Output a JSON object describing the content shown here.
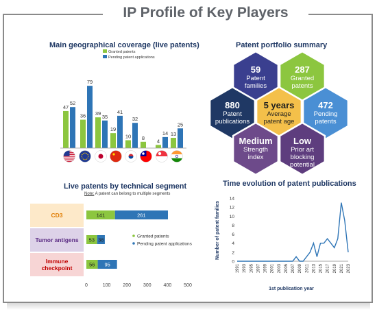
{
  "page": {
    "title": "IP Profile of Key Players"
  },
  "colors": {
    "granted": "#8cc63f",
    "pending": "#2e75b6",
    "frame": "#8a8a8a",
    "title_blue": "#1f3864"
  },
  "geo": {
    "title": "Main geographical coverage (live patents)",
    "legend": [
      "Granted patents",
      "Pending patent applications"
    ],
    "flags": [
      "us-flag-icon",
      "eu-flag-icon",
      "jp-flag-icon",
      "cn-flag-icon",
      "kr-flag-icon",
      "tw-flag-icon",
      "sg-flag-icon",
      "in-flag-icon"
    ]
  },
  "summary": {
    "title": "Patent portfolio summary",
    "hexes": [
      {
        "num": "59",
        "text": "Patent families",
        "color": "#3a3f8f"
      },
      {
        "num": "287",
        "text": "Granted patents",
        "color": "#8cc63f"
      },
      {
        "num": "880",
        "text": "Patent publications",
        "color": "#1f3864"
      },
      {
        "num": "5 years",
        "text": "Average patent age",
        "color": "#f4c04a"
      },
      {
        "num": "472",
        "text": "Pending patents",
        "color": "#4a8fd4"
      },
      {
        "num": "Medium",
        "text": "Strength index",
        "color": "#6d4a8a"
      },
      {
        "num": "Low",
        "text": "Prior art blocking potential",
        "color": "#5e3d7e"
      }
    ]
  },
  "segments": {
    "title": "Live patents by technical segment",
    "note_prefix": "Note:",
    "note": " A patent can belong to multiple segments",
    "labels": [
      {
        "text": "CD3",
        "bg": "#fde9c9",
        "fg": "#e07b00"
      },
      {
        "text": "Tumor antigens",
        "bg": "#ddd2e8",
        "fg": "#5b2c84"
      },
      {
        "text": "Immune checkpoint",
        "bg": "#f7d5d5",
        "fg": "#c00000"
      }
    ],
    "legend": [
      "Granted patents",
      "Pending patent applications"
    ]
  },
  "timeline": {
    "title": "Time evolution of patent publications"
  },
  "chart_data": [
    {
      "type": "bar",
      "title": "Main geographical coverage (live patents)",
      "categories": [
        "US",
        "EP",
        "JP",
        "CN",
        "KR",
        "TW",
        "SG",
        "IN"
      ],
      "series": [
        {
          "name": "Granted patents",
          "values": [
            47,
            36,
            39,
            19,
            10,
            8,
            4,
            13
          ]
        },
        {
          "name": "Pending patent applications",
          "values": [
            52,
            79,
            35,
            41,
            32,
            null,
            14,
            25
          ]
        }
      ],
      "ylim": [
        0,
        90
      ]
    },
    {
      "type": "bar",
      "orientation": "horizontal",
      "stacked": true,
      "title": "Live patents by technical segment",
      "categories": [
        "CD3",
        "Tumor antigens",
        "Immune checkpoint"
      ],
      "series": [
        {
          "name": "Granted patents",
          "values": [
            141,
            53,
            56
          ]
        },
        {
          "name": "Pending patent applications",
          "values": [
            261,
            38,
            95
          ]
        }
      ],
      "xlim": [
        0,
        500
      ],
      "xticks": [
        0,
        100,
        200,
        300,
        400,
        500
      ]
    },
    {
      "type": "line",
      "title": "Time evolution of patent publications",
      "xlabel": "1st publication year",
      "ylabel": "Number of patent families",
      "x": [
        1991,
        1992,
        1993,
        1994,
        1995,
        1996,
        1997,
        1998,
        1999,
        2000,
        2001,
        2002,
        2003,
        2004,
        2005,
        2006,
        2007,
        2008,
        2009,
        2010,
        2011,
        2012,
        2013,
        2014,
        2015,
        2016,
        2017,
        2018,
        2019,
        2020,
        2021,
        2022,
        2023
      ],
      "y": [
        0,
        0,
        0,
        0,
        0,
        0,
        0,
        0,
        0,
        0,
        0,
        0,
        0,
        0,
        0,
        0,
        0,
        1,
        0,
        0,
        1,
        2,
        4,
        1,
        4,
        4,
        5,
        4,
        3,
        5,
        13,
        9,
        2
      ],
      "xticks": [
        1991,
        1993,
        1995,
        1997,
        1999,
        2001,
        2003,
        2005,
        2007,
        2009,
        2011,
        2013,
        2015,
        2017,
        2019,
        2021,
        2023
      ],
      "yticks": [
        0,
        2,
        4,
        6,
        8,
        10,
        12,
        14
      ],
      "ylim": [
        0,
        14
      ]
    }
  ]
}
